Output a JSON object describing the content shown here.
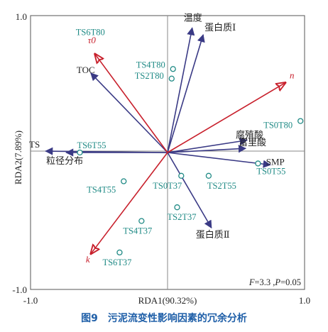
{
  "chart_data": {
    "type": "scatter",
    "title": "",
    "xlabel": "RDA1(90.32%)",
    "ylabel": "RDA2(7.89%)",
    "xlim": [
      -1.0,
      1.0
    ],
    "ylim": [
      -1.0,
      1.0
    ],
    "x_ticks": [
      "-1.0",
      "1.0"
    ],
    "y_ticks": [
      "1.0",
      "-1.0"
    ],
    "annotation": "F=3.3, P=0.05",
    "environmental_vectors": [
      {
        "name": "τ0",
        "x": -0.53,
        "y": 0.72,
        "color": "#c8202c"
      },
      {
        "name": "n",
        "x": 0.86,
        "y": 0.51,
        "color": "#c8202c"
      },
      {
        "name": "k",
        "x": -0.56,
        "y": -0.74,
        "color": "#c8202c"
      }
    ],
    "response_vectors": [
      {
        "name": "温度",
        "x": 0.18,
        "y": 0.91,
        "color": "#3a3a85"
      },
      {
        "name": "蛋白质Ⅰ",
        "x": 0.26,
        "y": 0.86,
        "color": "#3a3a85"
      },
      {
        "name": "TOC",
        "x": -0.56,
        "y": 0.58,
        "color": "#3a3a85"
      },
      {
        "name": "腐殖酸",
        "x": 0.58,
        "y": 0.09,
        "color": "#3a3a85"
      },
      {
        "name": "富里酸",
        "x": 0.57,
        "y": 0.03,
        "color": "#3a3a85"
      },
      {
        "name": "SMP",
        "x": 0.75,
        "y": -0.09,
        "color": "#3a3a85"
      },
      {
        "name": "TS",
        "x": -0.89,
        "y": 0.01,
        "color": "#3a3a85"
      },
      {
        "name": "粒径分布",
        "x": -0.74,
        "y": 0.0,
        "color": "#3a3a85"
      },
      {
        "name": "蛋白质Ⅱ",
        "x": 0.32,
        "y": -0.55,
        "color": "#3a3a85"
      }
    ],
    "samples": [
      {
        "name": "TS6T80",
        "x": -0.4,
        "y": 0.9,
        "point": false
      },
      {
        "name": "TS4T80",
        "x": 0.04,
        "y": 0.61,
        "point": true
      },
      {
        "name": "TS2T80",
        "x": 0.03,
        "y": 0.54,
        "point": true
      },
      {
        "name": "TS0T80",
        "x": 0.97,
        "y": 0.23,
        "point": true
      },
      {
        "name": "TS6T55",
        "x": -0.64,
        "y": 0.0,
        "point": true
      },
      {
        "name": "TS0T55",
        "x": 0.66,
        "y": -0.08,
        "point": true
      },
      {
        "name": "TS0T37",
        "x": 0.1,
        "y": -0.17,
        "point": true
      },
      {
        "name": "TS2T55",
        "x": 0.3,
        "y": -0.17,
        "point": true
      },
      {
        "name": "TS4T55",
        "x": -0.32,
        "y": -0.21,
        "point": true
      },
      {
        "name": "TS2T37",
        "x": 0.07,
        "y": -0.4,
        "point": true
      },
      {
        "name": "TS4T37",
        "x": -0.19,
        "y": -0.5,
        "point": true
      },
      {
        "name": "TS6T37",
        "x": -0.35,
        "y": -0.73,
        "point": true
      }
    ],
    "grid": false,
    "legend": "none"
  },
  "caption": "图9　污泥流变性影响因素的冗余分析"
}
